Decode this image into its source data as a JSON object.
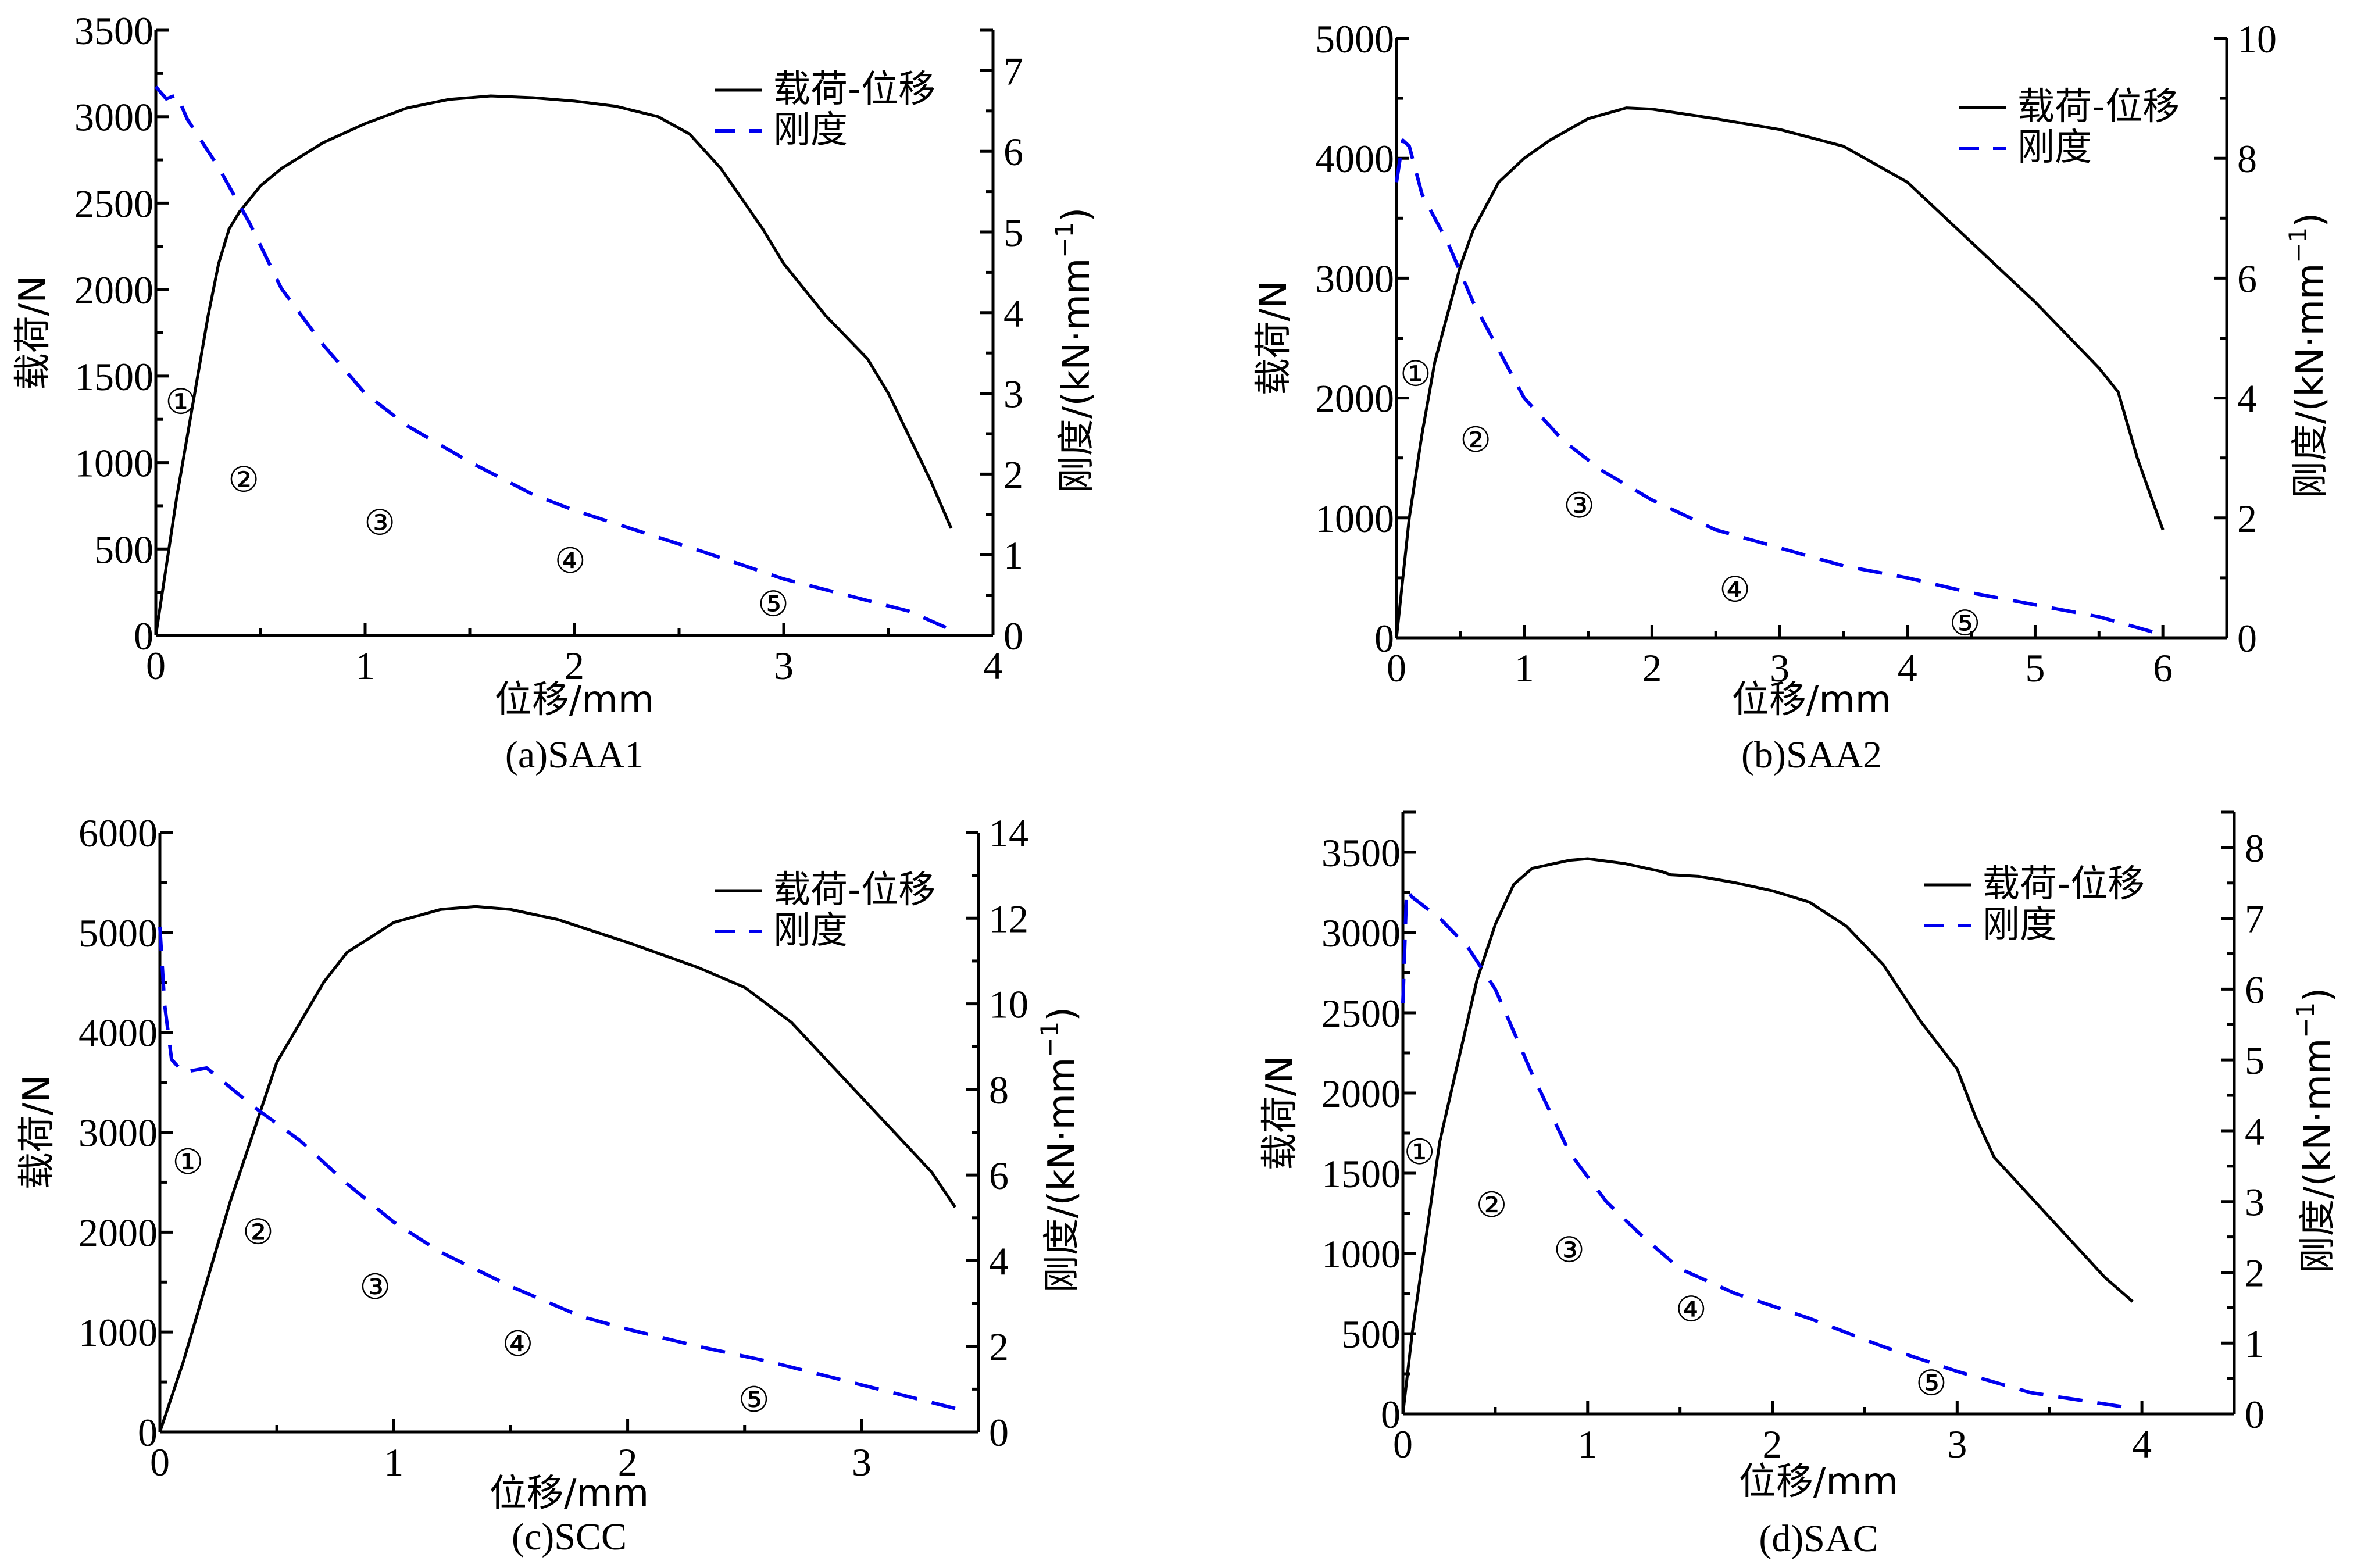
{
  "figure": {
    "colors": {
      "load": "#000000",
      "stiffness": "#0000ee",
      "axis": "#000000"
    }
  },
  "chart_data": [
    {
      "id": "a",
      "type": "line",
      "caption": "(a)SAA1",
      "xlabel": "位移/mm",
      "ylabel_left": "载荷/N",
      "ylabel_right": "刚度/(kN·mm",
      "ylabel_right_sup": "−1",
      "ylabel_right_close": ")",
      "xlim": [
        0,
        4
      ],
      "ylim_left": [
        0,
        3500
      ],
      "ylim_right": [
        0,
        7.5
      ],
      "xticks": [
        0,
        1,
        2,
        3,
        4
      ],
      "yticks_left": [
        0,
        500,
        1000,
        1500,
        2000,
        2500,
        3000,
        3500
      ],
      "yticks_right": [
        0,
        1,
        2,
        3,
        4,
        5,
        6,
        7
      ],
      "grid": false,
      "legend": {
        "position": "top-right",
        "entries": [
          "载荷-位移",
          "刚度"
        ]
      },
      "series": [
        {
          "name": "载荷-位移",
          "axis": "left",
          "style": "solid",
          "points": [
            [
              0,
              0
            ],
            [
              0.05,
              400
            ],
            [
              0.1,
              800
            ],
            [
              0.15,
              1150
            ],
            [
              0.2,
              1500
            ],
            [
              0.25,
              1850
            ],
            [
              0.3,
              2150
            ],
            [
              0.35,
              2350
            ],
            [
              0.4,
              2450
            ],
            [
              0.5,
              2600
            ],
            [
              0.6,
              2700
            ],
            [
              0.8,
              2850
            ],
            [
              1.0,
              2960
            ],
            [
              1.2,
              3050
            ],
            [
              1.4,
              3100
            ],
            [
              1.6,
              3120
            ],
            [
              1.8,
              3110
            ],
            [
              2.0,
              3090
            ],
            [
              2.2,
              3060
            ],
            [
              2.4,
              3000
            ],
            [
              2.55,
              2900
            ],
            [
              2.7,
              2700
            ],
            [
              2.9,
              2350
            ],
            [
              3.0,
              2150
            ],
            [
              3.2,
              1850
            ],
            [
              3.4,
              1600
            ],
            [
              3.5,
              1400
            ],
            [
              3.6,
              1150
            ],
            [
              3.7,
              900
            ],
            [
              3.8,
              620
            ]
          ]
        },
        {
          "name": "刚度",
          "axis": "right",
          "style": "dashed",
          "points": [
            [
              0,
              6.8
            ],
            [
              0.05,
              6.65
            ],
            [
              0.1,
              6.7
            ],
            [
              0.15,
              6.4
            ],
            [
              0.3,
              5.8
            ],
            [
              0.45,
              5.1
            ],
            [
              0.6,
              4.3
            ],
            [
              0.8,
              3.6
            ],
            [
              1.0,
              3.0
            ],
            [
              1.2,
              2.6
            ],
            [
              1.5,
              2.15
            ],
            [
              1.8,
              1.75
            ],
            [
              2.0,
              1.55
            ],
            [
              2.3,
              1.3
            ],
            [
              2.6,
              1.05
            ],
            [
              3.0,
              0.7
            ],
            [
              3.3,
              0.5
            ],
            [
              3.6,
              0.3
            ],
            [
              3.8,
              0.07
            ]
          ]
        }
      ],
      "annotations": [
        {
          "text": "①",
          "x": 0.12,
          "y": 1350
        },
        {
          "text": "②",
          "x": 0.42,
          "y": 900
        },
        {
          "text": "③",
          "x": 1.07,
          "y": 650
        },
        {
          "text": "④",
          "x": 1.98,
          "y": 430
        },
        {
          "text": "⑤",
          "x": 2.95,
          "y": 180
        }
      ]
    },
    {
      "id": "b",
      "type": "line",
      "caption": "(b)SAA2",
      "xlabel": "位移/mm",
      "ylabel_left": "载荷/N",
      "ylabel_right": "刚度/(kN·mm",
      "ylabel_right_sup": "−1",
      "ylabel_right_close": ")",
      "xlim": [
        0,
        6.5
      ],
      "ylim_left": [
        0,
        5000
      ],
      "ylim_right": [
        0,
        10
      ],
      "xticks": [
        0,
        1,
        2,
        3,
        4,
        5,
        6
      ],
      "yticks_left": [
        0,
        1000,
        2000,
        3000,
        4000,
        5000
      ],
      "yticks_right": [
        0,
        2,
        4,
        6,
        8,
        10
      ],
      "grid": false,
      "legend": {
        "position": "top-right",
        "entries": [
          "载荷-位移",
          "刚度"
        ]
      },
      "series": [
        {
          "name": "载荷-位移",
          "axis": "left",
          "style": "solid",
          "points": [
            [
              0,
              0
            ],
            [
              0.05,
              500
            ],
            [
              0.1,
              1000
            ],
            [
              0.2,
              1700
            ],
            [
              0.3,
              2300
            ],
            [
              0.4,
              2700
            ],
            [
              0.5,
              3100
            ],
            [
              0.6,
              3400
            ],
            [
              0.8,
              3800
            ],
            [
              1.0,
              4000
            ],
            [
              1.2,
              4150
            ],
            [
              1.5,
              4330
            ],
            [
              1.8,
              4420
            ],
            [
              2.0,
              4410
            ],
            [
              2.5,
              4330
            ],
            [
              3.0,
              4240
            ],
            [
              3.5,
              4100
            ],
            [
              4.0,
              3800
            ],
            [
              4.5,
              3300
            ],
            [
              5.0,
              2800
            ],
            [
              5.5,
              2250
            ],
            [
              5.65,
              2050
            ],
            [
              5.8,
              1500
            ],
            [
              6.0,
              900
            ]
          ]
        },
        {
          "name": "刚度",
          "axis": "right",
          "style": "dashed",
          "points": [
            [
              0,
              7.6
            ],
            [
              0.05,
              8.3
            ],
            [
              0.1,
              8.2
            ],
            [
              0.2,
              7.4
            ],
            [
              0.4,
              6.6
            ],
            [
              0.6,
              5.6
            ],
            [
              0.8,
              4.8
            ],
            [
              1.0,
              4.0
            ],
            [
              1.3,
              3.3
            ],
            [
              1.6,
              2.8
            ],
            [
              2.0,
              2.3
            ],
            [
              2.5,
              1.8
            ],
            [
              3.0,
              1.5
            ],
            [
              3.5,
              1.2
            ],
            [
              4.0,
              1.0
            ],
            [
              4.5,
              0.75
            ],
            [
              5.0,
              0.55
            ],
            [
              5.5,
              0.35
            ],
            [
              6.0,
              0.05
            ]
          ]
        }
      ],
      "annotations": [
        {
          "text": "①",
          "x": 0.15,
          "y": 2200
        },
        {
          "text": "②",
          "x": 0.62,
          "y": 1650
        },
        {
          "text": "③",
          "x": 1.43,
          "y": 1100
        },
        {
          "text": "④",
          "x": 2.65,
          "y": 400
        },
        {
          "text": "⑤",
          "x": 4.45,
          "y": 120
        }
      ]
    },
    {
      "id": "c",
      "type": "line",
      "caption": "(c)SCC",
      "xlabel": "位移/mm",
      "ylabel_left": "载荷/N",
      "ylabel_right": "刚度/(kN·mm",
      "ylabel_right_sup": "−1",
      "ylabel_right_close": ")",
      "xlim": [
        0,
        3.5
      ],
      "ylim_left": [
        0,
        6000
      ],
      "ylim_right": [
        0,
        14
      ],
      "xticks": [
        0,
        1,
        2,
        3
      ],
      "yticks_left": [
        0,
        1000,
        2000,
        3000,
        4000,
        5000,
        6000
      ],
      "yticks_right": [
        0,
        2,
        4,
        6,
        8,
        10,
        12,
        14
      ],
      "grid": false,
      "legend": {
        "position": "top-right",
        "entries": [
          "载荷-位移",
          "刚度"
        ]
      },
      "series": [
        {
          "name": "载荷-位移",
          "axis": "left",
          "style": "solid",
          "points": [
            [
              0,
              0
            ],
            [
              0.1,
              700
            ],
            [
              0.2,
              1500
            ],
            [
              0.3,
              2300
            ],
            [
              0.4,
              3000
            ],
            [
              0.5,
              3700
            ],
            [
              0.6,
              4100
            ],
            [
              0.7,
              4500
            ],
            [
              0.8,
              4800
            ],
            [
              1.0,
              5100
            ],
            [
              1.2,
              5230
            ],
            [
              1.35,
              5260
            ],
            [
              1.5,
              5230
            ],
            [
              1.7,
              5130
            ],
            [
              2.0,
              4900
            ],
            [
              2.3,
              4650
            ],
            [
              2.5,
              4450
            ],
            [
              2.7,
              4100
            ],
            [
              2.9,
              3600
            ],
            [
              3.1,
              3100
            ],
            [
              3.3,
              2600
            ],
            [
              3.4,
              2250
            ]
          ]
        },
        {
          "name": "刚度",
          "axis": "right",
          "style": "dashed",
          "points": [
            [
              0,
              11.8
            ],
            [
              0.02,
              10.0
            ],
            [
              0.05,
              8.7
            ],
            [
              0.1,
              8.4
            ],
            [
              0.2,
              8.5
            ],
            [
              0.4,
              7.6
            ],
            [
              0.6,
              6.8
            ],
            [
              0.8,
              5.8
            ],
            [
              1.0,
              4.9
            ],
            [
              1.2,
              4.2
            ],
            [
              1.5,
              3.4
            ],
            [
              1.8,
              2.7
            ],
            [
              2.0,
              2.4
            ],
            [
              2.3,
              2.0
            ],
            [
              2.6,
              1.65
            ],
            [
              3.0,
              1.1
            ],
            [
              3.4,
              0.55
            ]
          ]
        }
      ],
      "annotations": [
        {
          "text": "①",
          "x": 0.12,
          "y": 2700
        },
        {
          "text": "②",
          "x": 0.42,
          "y": 2000
        },
        {
          "text": "③",
          "x": 0.92,
          "y": 1450
        },
        {
          "text": "④",
          "x": 1.53,
          "y": 880
        },
        {
          "text": "⑤",
          "x": 2.54,
          "y": 320
        }
      ]
    },
    {
      "id": "d",
      "type": "line",
      "caption": "(d)SAC",
      "xlabel": "位移/mm",
      "ylabel_left": "载荷/N",
      "ylabel_right": "刚度/(kN·mm",
      "ylabel_right_sup": "−1",
      "ylabel_right_close": ")",
      "xlim": [
        0,
        4.5
      ],
      "ylim_left": [
        0,
        3750
      ],
      "ylim_right": [
        0,
        8.5
      ],
      "xticks": [
        0,
        1,
        2,
        3,
        4
      ],
      "yticks_left": [
        0,
        500,
        1000,
        1500,
        2000,
        2500,
        3000,
        3500
      ],
      "yticks_right": [
        0,
        1,
        2,
        3,
        4,
        5,
        6,
        7,
        8
      ],
      "grid": false,
      "legend": {
        "position": "top-right",
        "entries": [
          "载荷-位移",
          "刚度"
        ]
      },
      "series": [
        {
          "name": "载荷-位移",
          "axis": "left",
          "style": "solid",
          "points": [
            [
              0,
              0
            ],
            [
              0.05,
              500
            ],
            [
              0.1,
              900
            ],
            [
              0.15,
              1300
            ],
            [
              0.2,
              1700
            ],
            [
              0.3,
              2200
            ],
            [
              0.4,
              2700
            ],
            [
              0.5,
              3050
            ],
            [
              0.6,
              3300
            ],
            [
              0.7,
              3400
            ],
            [
              0.9,
              3450
            ],
            [
              1.0,
              3460
            ],
            [
              1.2,
              3430
            ],
            [
              1.4,
              3380
            ],
            [
              1.45,
              3360
            ],
            [
              1.6,
              3350
            ],
            [
              1.8,
              3310
            ],
            [
              2.0,
              3260
            ],
            [
              2.2,
              3190
            ],
            [
              2.4,
              3040
            ],
            [
              2.6,
              2800
            ],
            [
              2.8,
              2450
            ],
            [
              3.0,
              2150
            ],
            [
              3.1,
              1850
            ],
            [
              3.2,
              1600
            ],
            [
              3.4,
              1350
            ],
            [
              3.6,
              1100
            ],
            [
              3.8,
              850
            ],
            [
              3.95,
              700
            ]
          ]
        },
        {
          "name": "刚度",
          "axis": "right",
          "style": "dashed",
          "points": [
            [
              0,
              5.8
            ],
            [
              0.02,
              7.4
            ],
            [
              0.05,
              7.3
            ],
            [
              0.1,
              7.2
            ],
            [
              0.2,
              7.0
            ],
            [
              0.35,
              6.6
            ],
            [
              0.5,
              6.0
            ],
            [
              0.7,
              4.8
            ],
            [
              0.9,
              3.7
            ],
            [
              1.1,
              3.0
            ],
            [
              1.3,
              2.5
            ],
            [
              1.5,
              2.05
            ],
            [
              1.8,
              1.7
            ],
            [
              2.2,
              1.35
            ],
            [
              2.6,
              0.95
            ],
            [
              3.0,
              0.6
            ],
            [
              3.4,
              0.3
            ],
            [
              3.9,
              0.1
            ]
          ]
        }
      ],
      "annotations": [
        {
          "text": "①",
          "x": 0.09,
          "y": 1630
        },
        {
          "text": "②",
          "x": 0.48,
          "y": 1300
        },
        {
          "text": "③",
          "x": 0.9,
          "y": 1020
        },
        {
          "text": "④",
          "x": 1.56,
          "y": 650
        },
        {
          "text": "⑤",
          "x": 2.86,
          "y": 190
        }
      ]
    }
  ]
}
